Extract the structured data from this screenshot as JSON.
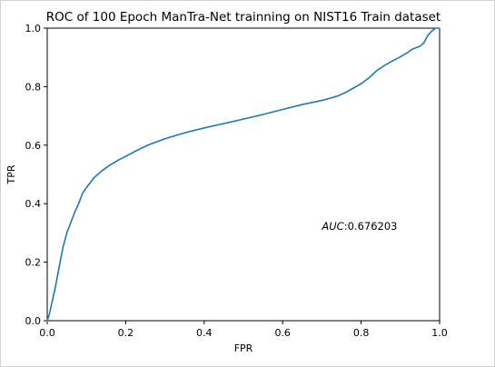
{
  "chart_data": {
    "type": "line",
    "title": "ROC of 100 Epoch ManTra-Net trainning on NIST16 Train dataset",
    "xlabel": "FPR",
    "ylabel": "TPR",
    "xlim": [
      0.0,
      1.0
    ],
    "ylim": [
      0.0,
      1.0
    ],
    "xticks": [
      0.0,
      0.2,
      0.4,
      0.6,
      0.8,
      1.0
    ],
    "xtick_labels": [
      "0.0",
      "0.2",
      "0.4",
      "0.6",
      "0.8",
      "1.0"
    ],
    "yticks": [
      0.0,
      0.2,
      0.4,
      0.6,
      0.8,
      1.0
    ],
    "ytick_labels": [
      "0.0",
      "0.2",
      "0.4",
      "0.6",
      "0.8",
      "1.0"
    ],
    "grid": false,
    "legend": "none",
    "annotation": {
      "prefix": "AUC",
      "value": ":0.676203",
      "x": 0.7,
      "y": 0.31
    },
    "series": [
      {
        "color": "#1f77b4",
        "x": [
          0.0,
          0.005,
          0.01,
          0.02,
          0.03,
          0.04,
          0.05,
          0.06,
          0.07,
          0.08,
          0.09,
          0.1,
          0.12,
          0.14,
          0.16,
          0.18,
          0.2,
          0.23,
          0.26,
          0.3,
          0.35,
          0.4,
          0.45,
          0.5,
          0.55,
          0.6,
          0.65,
          0.7,
          0.72,
          0.74,
          0.76,
          0.78,
          0.8,
          0.82,
          0.84,
          0.86,
          0.88,
          0.9,
          0.92,
          0.93,
          0.95,
          0.96,
          0.97,
          0.98,
          0.99,
          1.0
        ],
        "y": [
          0.0,
          0.02,
          0.05,
          0.11,
          0.18,
          0.25,
          0.3,
          0.335,
          0.37,
          0.4,
          0.435,
          0.455,
          0.49,
          0.513,
          0.532,
          0.548,
          0.562,
          0.583,
          0.602,
          0.622,
          0.642,
          0.659,
          0.674,
          0.689,
          0.705,
          0.722,
          0.739,
          0.753,
          0.76,
          0.768,
          0.78,
          0.795,
          0.81,
          0.83,
          0.855,
          0.873,
          0.888,
          0.902,
          0.918,
          0.928,
          0.938,
          0.95,
          0.975,
          0.99,
          1.0,
          1.0
        ]
      }
    ]
  }
}
